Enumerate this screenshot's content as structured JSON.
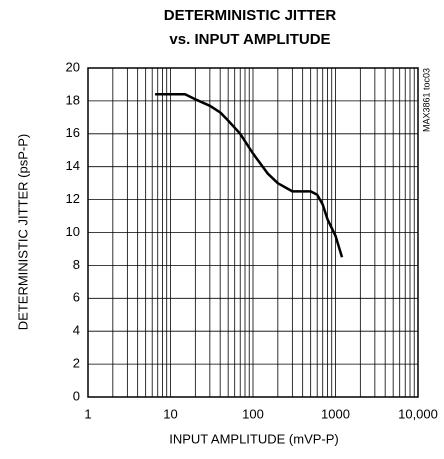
{
  "chart_data": {
    "type": "line",
    "title": [
      "DETERMINISTIC JITTER",
      "vs. INPUT AMPLITUDE"
    ],
    "xlabel": "INPUT AMPLITUDE (mVP-P)",
    "ylabel": "DETERMINISTIC JITTER (psP-P)",
    "annotation": "MAX3861 toc03",
    "x": [
      6.5,
      10,
      15,
      20,
      30,
      40,
      50,
      70,
      100,
      150,
      200,
      300,
      500,
      600,
      700,
      800,
      1000,
      1200
    ],
    "series": [
      {
        "name": "jitter",
        "color": "#000000",
        "values": [
          18.4,
          18.4,
          18.4,
          18.1,
          17.7,
          17.3,
          16.8,
          16.0,
          14.8,
          13.6,
          13.0,
          12.5,
          12.5,
          12.3,
          11.7,
          10.8,
          9.8,
          8.5
        ]
      }
    ],
    "xscale": "log",
    "xlim": [
      1,
      10000
    ],
    "xticks": [
      1,
      10,
      100,
      1000,
      {
        "value": 10000,
        "label": "10,000"
      }
    ],
    "xminor": [
      2,
      3,
      4,
      5,
      6,
      7,
      8,
      9,
      20,
      30,
      40,
      50,
      60,
      70,
      80,
      90,
      200,
      300,
      400,
      500,
      600,
      700,
      800,
      900,
      2000,
      3000,
      4000,
      5000,
      6000,
      7000,
      8000,
      9000
    ],
    "ylim": [
      0,
      20
    ],
    "yticks": [
      0,
      2,
      4,
      6,
      8,
      10,
      12,
      14,
      16,
      18,
      20
    ],
    "grid": true
  }
}
